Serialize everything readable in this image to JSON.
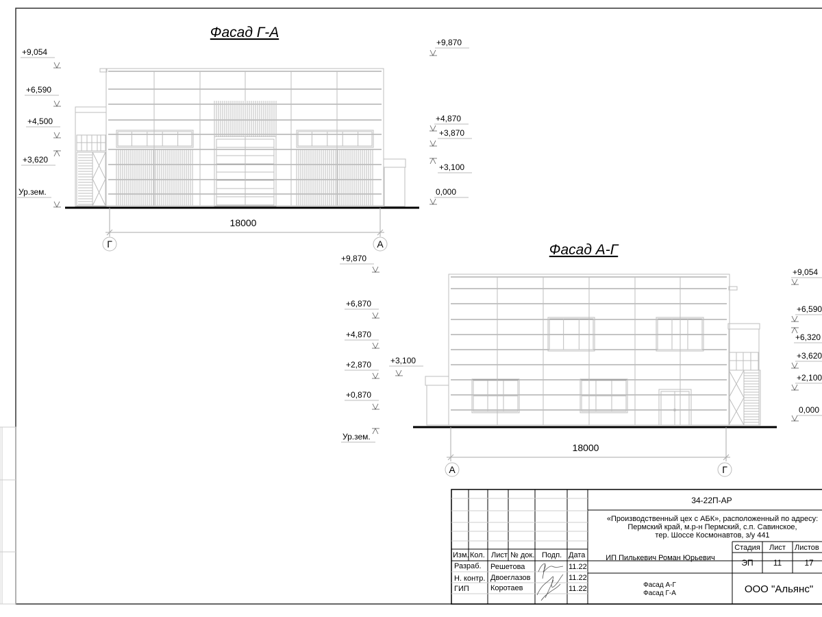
{
  "facade_1": {
    "title": "Фасад Г-А",
    "levels_left": [
      "+9,054",
      "+6,590",
      "+4,500",
      "+3,620",
      "Ур.зем."
    ],
    "levels_right": [
      "+9,870",
      "+4,870",
      "+3,870",
      "+3,100",
      "0,000"
    ],
    "dimension": "18000",
    "axis_left": "Г",
    "axis_right": "А"
  },
  "facade_2": {
    "title": "Фасад А-Г",
    "levels_left": [
      "+9,870",
      "+6,870",
      "+4,870",
      "+2,870",
      "+0,870",
      "Ур.зем."
    ],
    "level_annex": "+3,100",
    "levels_right": [
      "+9,054",
      "+6,590",
      "+6,320",
      "+3,620",
      "+2,100",
      "0,000"
    ],
    "dimension": "18000",
    "axis_left": "А",
    "axis_right": "Г"
  },
  "title_block": {
    "code": "34-22П-АР",
    "project_line1": "«Производственный цех с АБК», расположенный по адресу:",
    "project_line2": "Пермский край, м.р-н Пермский, с.п. Савинское,",
    "project_line3": "тер. Шоссе Космонавтов, з/у 441",
    "headers": [
      "Изм.",
      "Кол.",
      "Лист",
      "№ док.",
      "Подп.",
      "Дата"
    ],
    "rows": [
      {
        "role": "Разраб.",
        "name": "Решетова",
        "date": "11.22"
      },
      {
        "role": "Н. контр.",
        "name": "Двоеглазов",
        "date": "11.22"
      },
      {
        "role": "ГИП",
        "name": "Коротаев",
        "date": "11.22"
      }
    ],
    "designer": "ИП Пилькевич Роман Юрьевич",
    "stage_header": "Стадия",
    "sheet_header": "Лист",
    "sheets_header": "Листов",
    "stage": "ЭП",
    "sheet": "11",
    "sheets": "17",
    "sheet_title_1": "Фасад А-Г",
    "sheet_title_2": "Фасад Г-А",
    "company": "ООО \"Альянс\""
  }
}
